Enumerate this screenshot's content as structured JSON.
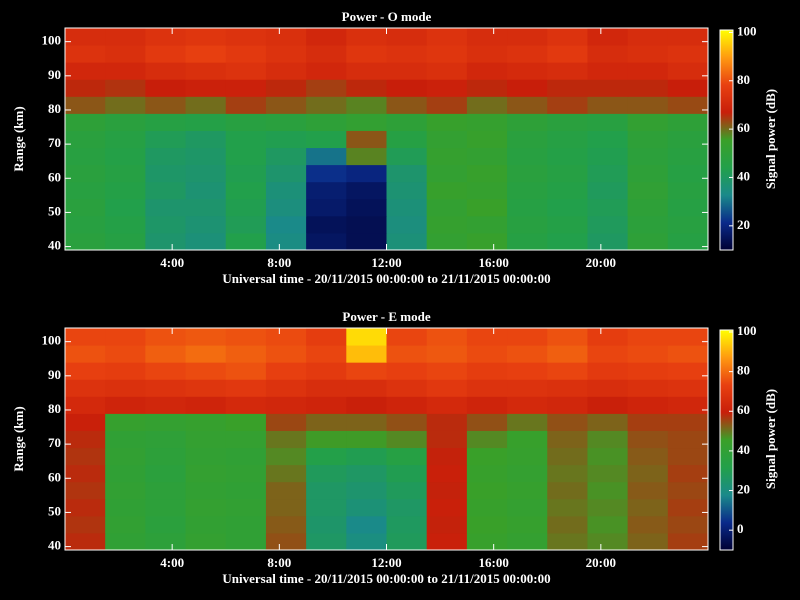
{
  "chart_data": [
    {
      "type": "heatmap",
      "title": "Power - O mode",
      "ylabel": "Range (km)",
      "xlabel": "Universal time - 20/11/2015 00:00:00 to 21/11/2015 00:00:00",
      "colorbar_label": "Signal power (dB)",
      "x_bins": [
        0,
        1.5,
        3,
        4.5,
        6,
        7.5,
        9,
        10.5,
        12,
        13.5,
        15,
        16.5,
        18,
        19.5,
        21,
        22.5,
        24
      ],
      "y_bins": [
        39,
        44,
        49,
        54,
        59,
        64,
        69,
        74,
        79,
        84,
        89,
        94,
        99,
        104
      ],
      "z": [
        [
          48,
          46,
          38,
          36,
          44,
          34,
          16,
          14,
          36,
          52,
          54,
          46,
          44,
          40,
          50,
          46
        ],
        [
          47,
          45,
          39,
          37,
          42,
          33,
          15,
          14,
          35,
          53,
          52,
          47,
          45,
          41,
          49,
          47
        ],
        [
          48,
          44,
          38,
          38,
          43,
          35,
          17,
          15,
          36,
          52,
          55,
          46,
          44,
          42,
          50,
          46
        ],
        [
          47,
          45,
          40,
          37,
          44,
          36,
          18,
          16,
          37,
          54,
          53,
          47,
          45,
          41,
          51,
          47
        ],
        [
          48,
          46,
          39,
          38,
          43,
          38,
          22,
          20,
          38,
          52,
          54,
          48,
          46,
          42,
          50,
          46
        ],
        [
          47,
          45,
          40,
          39,
          44,
          40,
          30,
          58,
          42,
          53,
          52,
          47,
          45,
          43,
          49,
          47
        ],
        [
          48,
          46,
          42,
          40,
          44,
          43,
          44,
          62,
          46,
          52,
          54,
          48,
          46,
          44,
          50,
          48
        ],
        [
          50,
          48,
          46,
          45,
          47,
          48,
          50,
          52,
          50,
          54,
          53,
          50,
          48,
          47,
          52,
          50
        ],
        [
          62,
          60,
          62,
          60,
          64,
          62,
          60,
          58,
          62,
          64,
          60,
          62,
          64,
          62,
          62,
          63
        ],
        [
          66,
          65,
          67,
          68,
          68,
          66,
          64,
          66,
          67,
          68,
          66,
          67,
          66,
          66,
          66,
          67
        ],
        [
          70,
          70,
          72,
          73,
          74,
          72,
          70,
          72,
          72,
          73,
          70,
          71,
          72,
          70,
          70,
          72
        ],
        [
          74,
          73,
          76,
          78,
          76,
          74,
          72,
          75,
          74,
          75,
          73,
          74,
          76,
          72,
          73,
          74
        ],
        [
          72,
          72,
          74,
          75,
          74,
          73,
          70,
          73,
          72,
          74,
          72,
          72,
          74,
          70,
          72,
          72
        ]
      ],
      "xlim": [
        0,
        24
      ],
      "xticks": [
        {
          "value": 4,
          "label": "4:00"
        },
        {
          "value": 8,
          "label": "8:00"
        },
        {
          "value": 12,
          "label": "12:00"
        },
        {
          "value": 16,
          "label": "16:00"
        },
        {
          "value": 20,
          "label": "20:00"
        }
      ],
      "ylim": [
        39,
        104
      ],
      "yticks": [
        40,
        50,
        60,
        70,
        80,
        90,
        100
      ],
      "clim": [
        10,
        101
      ],
      "cticks": [
        20,
        40,
        60,
        80,
        100
      ],
      "colormap": [
        "#000033",
        "#0a2a8a",
        "#1a8a8a",
        "#22a04a",
        "#3aa028",
        "#c81e0a",
        "#e84010",
        "#ff9a10",
        "#ffff00"
      ]
    },
    {
      "type": "heatmap",
      "title": "Power - E mode",
      "ylabel": "Range (km)",
      "xlabel": "Universal time - 20/11/2015 00:00:00 to 21/11/2015 00:00:00",
      "colorbar_label": "Signal power (dB)",
      "x_bins": [
        0,
        1.5,
        3,
        4.5,
        6,
        7.5,
        9,
        10.5,
        12,
        13.5,
        15,
        16.5,
        18,
        19.5,
        21,
        22.5,
        24
      ],
      "y_bins": [
        39,
        44,
        49,
        54,
        59,
        64,
        69,
        74,
        79,
        84,
        89,
        94,
        99,
        104
      ],
      "z": [
        [
          58,
          40,
          38,
          42,
          40,
          54,
          26,
          20,
          28,
          60,
          44,
          42,
          50,
          48,
          52,
          56
        ],
        [
          57,
          41,
          37,
          41,
          40,
          53,
          25,
          18,
          27,
          59,
          45,
          43,
          51,
          47,
          53,
          55
        ],
        [
          58,
          40,
          38,
          42,
          41,
          52,
          26,
          22,
          26,
          60,
          44,
          42,
          50,
          48,
          52,
          56
        ],
        [
          57,
          41,
          38,
          41,
          40,
          52,
          26,
          24,
          28,
          59,
          45,
          43,
          51,
          47,
          53,
          55
        ],
        [
          58,
          40,
          37,
          42,
          41,
          50,
          28,
          26,
          30,
          60,
          44,
          42,
          50,
          48,
          52,
          56
        ],
        [
          57,
          41,
          38,
          41,
          40,
          48,
          32,
          30,
          34,
          59,
          45,
          43,
          51,
          47,
          53,
          55
        ],
        [
          58,
          40,
          39,
          42,
          42,
          50,
          46,
          46,
          48,
          58,
          48,
          44,
          52,
          48,
          54,
          55
        ],
        [
          60,
          43,
          42,
          43,
          45,
          55,
          52,
          52,
          54,
          58,
          54,
          50,
          54,
          52,
          56,
          56
        ],
        [
          64,
          62,
          63,
          62,
          64,
          63,
          62,
          60,
          62,
          64,
          62,
          64,
          63,
          60,
          62,
          63
        ],
        [
          68,
          67,
          68,
          69,
          70,
          68,
          66,
          66,
          68,
          70,
          68,
          68,
          67,
          66,
          67,
          68
        ],
        [
          73,
          72,
          74,
          75,
          76,
          73,
          71,
          74,
          73,
          74,
          72,
          73,
          74,
          71,
          72,
          73
        ],
        [
          76,
          75,
          78,
          80,
          78,
          76,
          74,
          92,
          76,
          77,
          75,
          76,
          78,
          74,
          75,
          76
        ],
        [
          74,
          74,
          76,
          77,
          76,
          75,
          72,
          96,
          74,
          76,
          74,
          74,
          76,
          72,
          74,
          74
        ]
      ],
      "xlim": [
        0,
        24
      ],
      "xticks": [
        {
          "value": 4,
          "label": "4:00"
        },
        {
          "value": 8,
          "label": "8:00"
        },
        {
          "value": 12,
          "label": "12:00"
        },
        {
          "value": 16,
          "label": "16:00"
        },
        {
          "value": 20,
          "label": "20:00"
        }
      ],
      "ylim": [
        39,
        104
      ],
      "yticks": [
        40,
        50,
        60,
        70,
        80,
        90,
        100
      ],
      "clim": [
        -10,
        101
      ],
      "cticks": [
        0,
        20,
        40,
        60,
        80,
        100
      ],
      "colormap": [
        "#000033",
        "#0a2a8a",
        "#1a8a8a",
        "#22a04a",
        "#3aa028",
        "#c81e0a",
        "#e84010",
        "#ff9a10",
        "#ffff00"
      ]
    }
  ]
}
